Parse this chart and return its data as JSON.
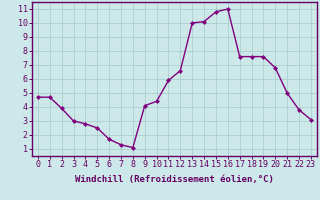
{
  "x": [
    0,
    1,
    2,
    3,
    4,
    5,
    6,
    7,
    8,
    9,
    10,
    11,
    12,
    13,
    14,
    15,
    16,
    17,
    18,
    19,
    20,
    21,
    22,
    23
  ],
  "y": [
    4.7,
    4.7,
    3.9,
    3.0,
    2.8,
    2.5,
    1.7,
    1.3,
    1.1,
    4.1,
    4.4,
    5.9,
    6.6,
    10.0,
    10.1,
    10.8,
    11.0,
    7.6,
    7.6,
    7.6,
    6.8,
    5.0,
    3.8,
    3.1
  ],
  "line_color": "#800080",
  "marker": "D",
  "marker_size": 2.0,
  "line_width": 1.0,
  "bg_color": "#cce8e8",
  "grid_color": "#aacece",
  "xlabel": "Windchill (Refroidissement éolien,°C)",
  "xlabel_fontsize": 6.5,
  "ylabel_ticks": [
    1,
    2,
    3,
    4,
    5,
    6,
    7,
    8,
    9,
    10,
    11
  ],
  "xlim": [
    -0.5,
    23.5
  ],
  "ylim": [
    0.5,
    11.5
  ],
  "tick_fontsize": 6.0,
  "axis_color": "#660066",
  "spine_color": "#660066",
  "xlabel_bold": true
}
